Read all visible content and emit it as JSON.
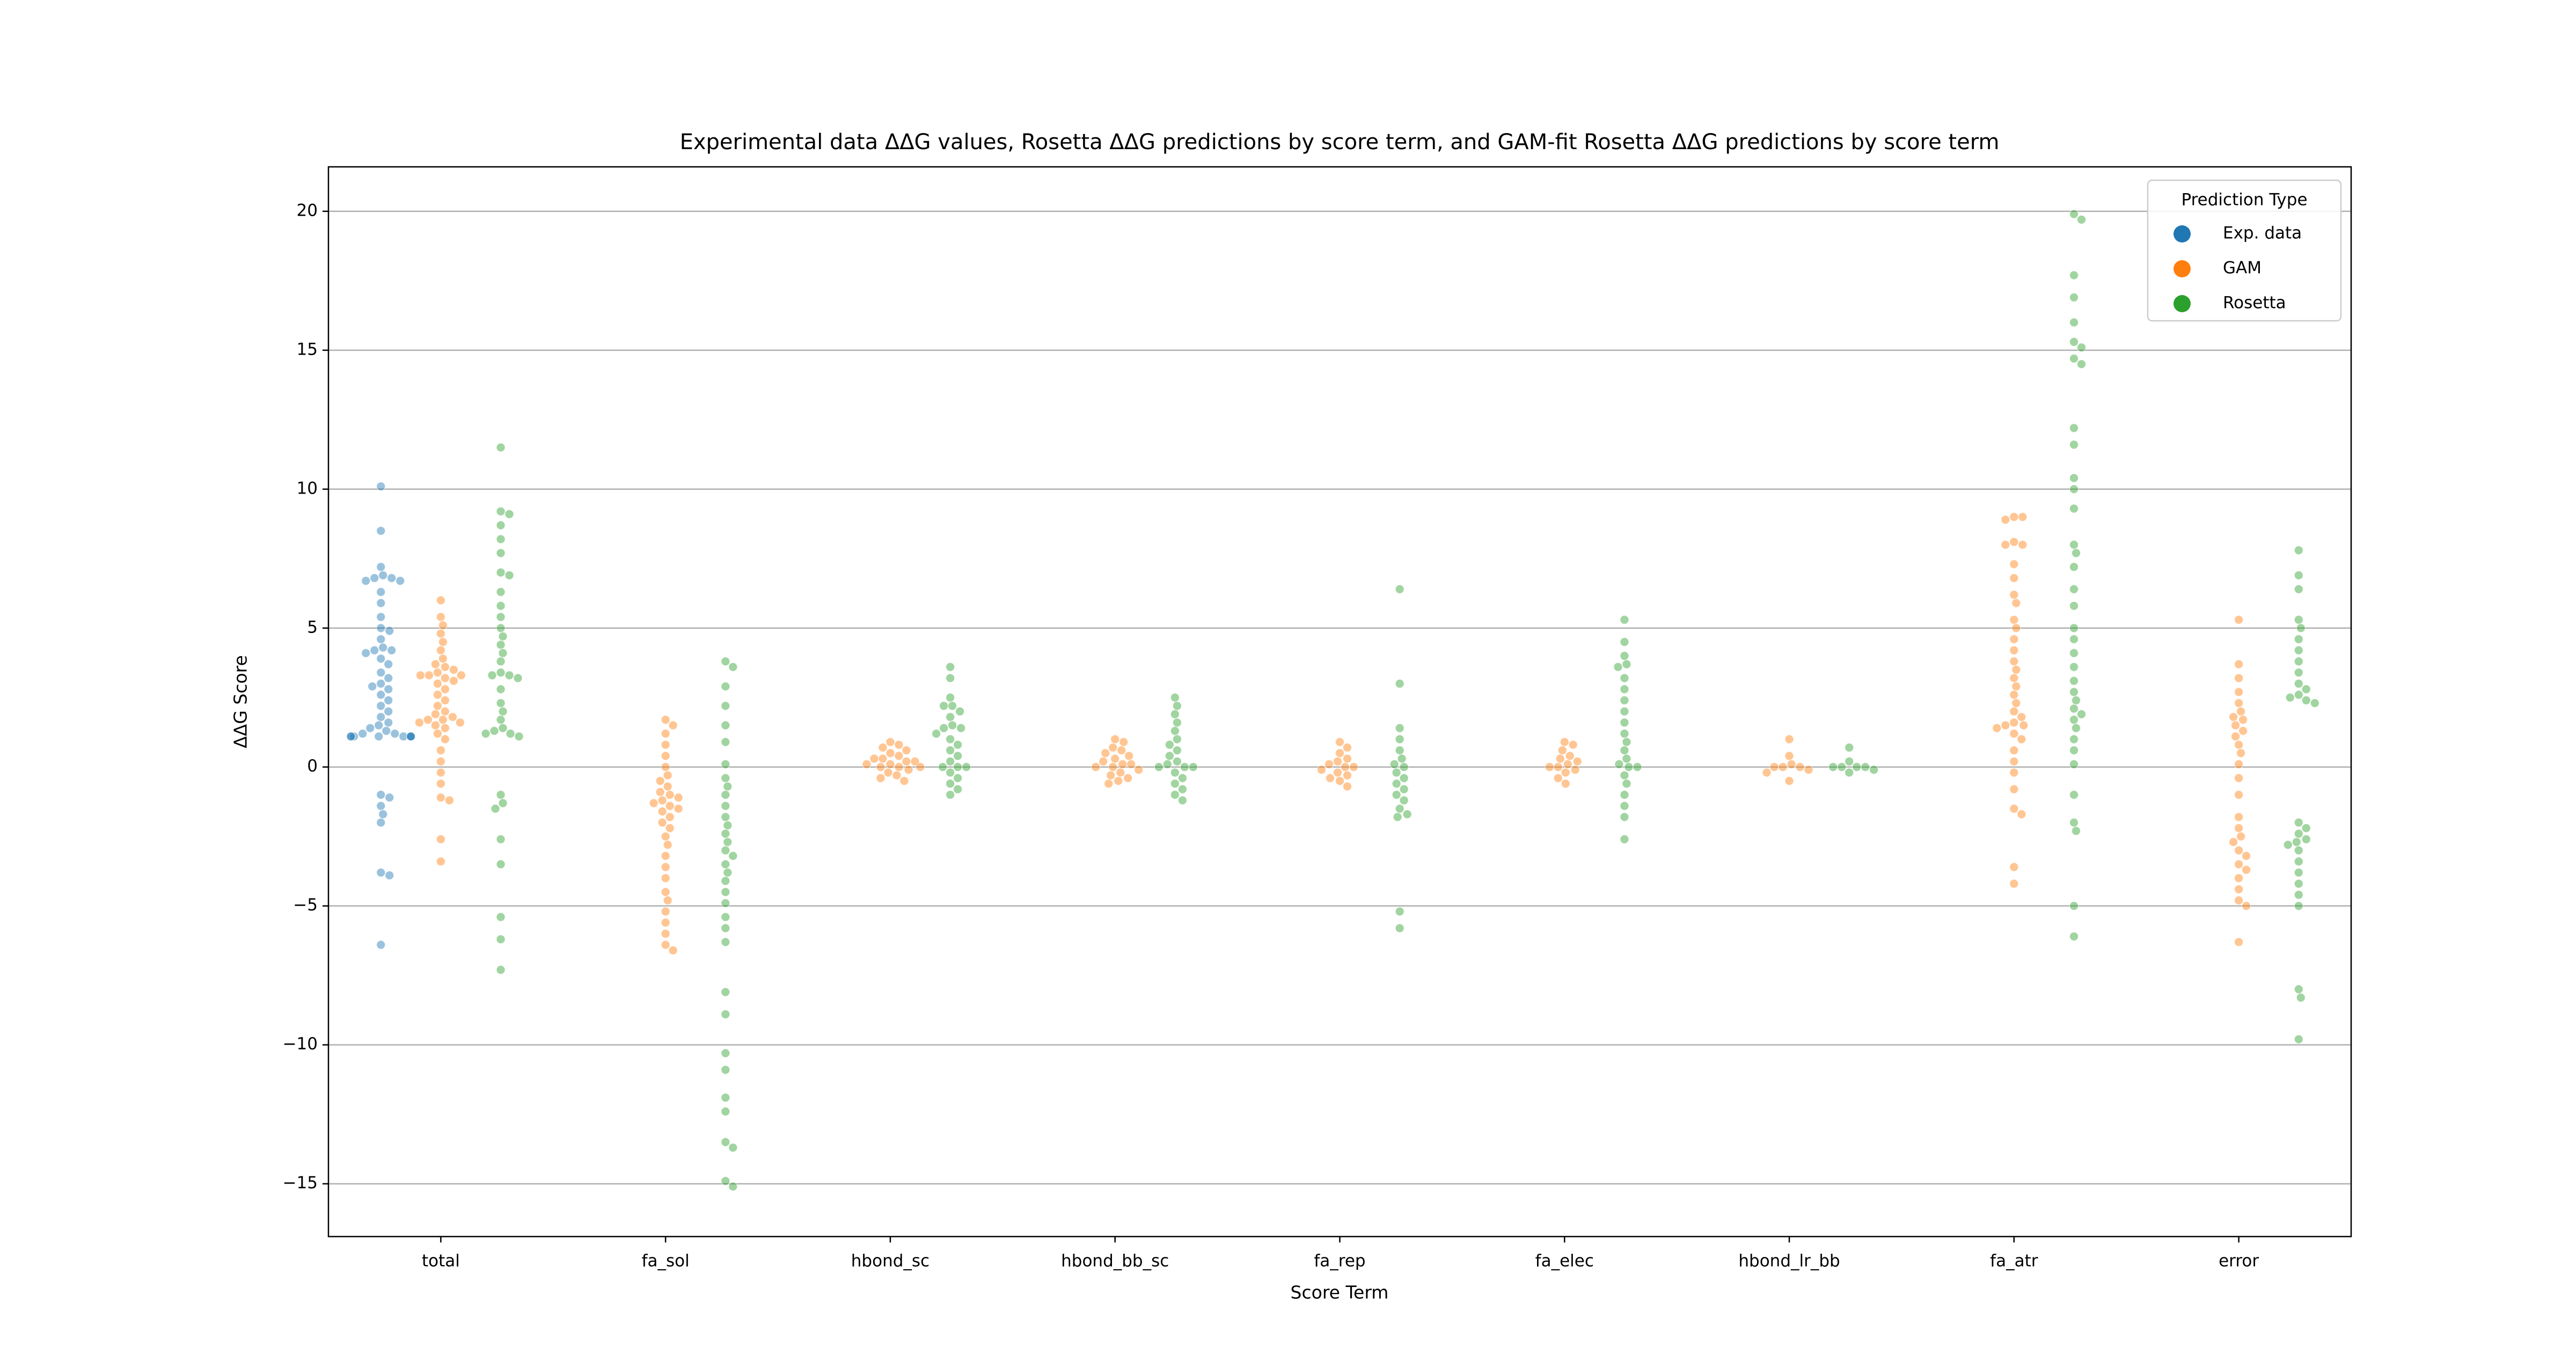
{
  "chart_data": {
    "type": "swarm",
    "title": "Experimental data ΔΔG values, Rosetta ΔΔG predictions by score term, and GAM-fit Rosetta ΔΔG predictions by score term",
    "xlabel": "Score Term",
    "ylabel": "ΔΔG Score",
    "legend_title": "Prediction Type",
    "legend": "upper right",
    "grid": true,
    "categories": [
      "total",
      "fa_sol",
      "hbond_sc",
      "hbond_bb_sc",
      "fa_rep",
      "fa_elec",
      "hbond_lr_bb",
      "fa_atr",
      "error"
    ],
    "ylim": [
      -16.9,
      21.6
    ],
    "yticks": [
      {
        "value": -15,
        "label": "−15"
      },
      {
        "value": -10,
        "label": "−10"
      },
      {
        "value": -5,
        "label": "−5"
      },
      0,
      5,
      10,
      15,
      20
    ],
    "series": [
      {
        "name": "Exp. data",
        "color": "#1f77b4",
        "values": [
          [
            10.1,
            8.5,
            7.2,
            6.9,
            6.8,
            6.8,
            6.7,
            6.7,
            6.3,
            5.9,
            5.4,
            5.0,
            4.9,
            4.6,
            4.3,
            4.2,
            4.2,
            4.1,
            3.9,
            3.7,
            3.4,
            3.2,
            3.0,
            2.9,
            2.8,
            2.6,
            2.4,
            2.2,
            2.0,
            1.8,
            1.6,
            1.5,
            1.4,
            1.3,
            1.2,
            1.2,
            1.1,
            1.1,
            1.1,
            1.1,
            1.1,
            1.1,
            1.1,
            1.1,
            -1.0,
            -1.1,
            -1.4,
            -1.7,
            -2.0,
            -3.8,
            -3.9,
            -6.4
          ],
          null,
          null,
          null,
          null,
          null,
          null,
          null,
          null
        ]
      },
      {
        "name": "GAM",
        "color": "#ff7f0e",
        "values": [
          [
            6.0,
            5.4,
            5.1,
            4.8,
            4.5,
            4.2,
            3.9,
            3.7,
            3.6,
            3.5,
            3.4,
            3.3,
            3.3,
            3.3,
            3.2,
            3.1,
            3.0,
            2.8,
            2.6,
            2.4,
            2.2,
            2.0,
            1.9,
            1.8,
            1.7,
            1.7,
            1.6,
            1.6,
            1.5,
            1.4,
            1.2,
            1.0,
            0.6,
            0.2,
            -0.2,
            -0.6,
            -1.1,
            -1.2,
            -2.6,
            -3.4
          ],
          [
            1.7,
            1.5,
            1.2,
            0.8,
            0.4,
            0.0,
            -0.3,
            -0.5,
            -0.7,
            -0.9,
            -1.0,
            -1.1,
            -1.2,
            -1.3,
            -1.4,
            -1.5,
            -1.6,
            -1.8,
            -2.0,
            -2.2,
            -2.5,
            -2.8,
            -3.2,
            -3.6,
            -4.0,
            -4.5,
            -4.8,
            -5.2,
            -5.6,
            -6.0,
            -6.4,
            -6.6
          ],
          [
            0.9,
            0.8,
            0.7,
            0.6,
            0.5,
            0.4,
            0.3,
            0.3,
            0.2,
            0.2,
            0.1,
            0.1,
            0.0,
            0.0,
            0.0,
            -0.1,
            -0.2,
            -0.3,
            -0.4,
            -0.5
          ],
          [
            1.0,
            0.9,
            0.7,
            0.6,
            0.5,
            0.4,
            0.3,
            0.2,
            0.1,
            0.1,
            0.0,
            0.0,
            -0.1,
            -0.2,
            -0.3,
            -0.4,
            -0.5,
            -0.6
          ],
          [
            0.9,
            0.7,
            0.5,
            0.3,
            0.2,
            0.1,
            0.0,
            0.0,
            -0.1,
            -0.2,
            -0.3,
            -0.4,
            -0.5,
            -0.7
          ],
          [
            0.9,
            0.8,
            0.6,
            0.4,
            0.3,
            0.2,
            0.1,
            0.0,
            0.0,
            -0.1,
            -0.2,
            -0.4,
            -0.6
          ],
          [
            1.0,
            0.4,
            0.1,
            0.0,
            0.0,
            0.0,
            -0.1,
            -0.2,
            -0.5
          ],
          [
            9.0,
            9.0,
            8.9,
            8.1,
            8.0,
            8.0,
            7.3,
            6.8,
            6.2,
            5.9,
            5.3,
            5.0,
            4.6,
            4.2,
            3.8,
            3.5,
            3.2,
            2.9,
            2.6,
            2.3,
            2.0,
            1.8,
            1.6,
            1.5,
            1.5,
            1.4,
            1.2,
            1.0,
            0.6,
            0.2,
            -0.2,
            -0.8,
            -1.5,
            -1.7,
            -3.6,
            -4.2
          ],
          [
            5.3,
            3.7,
            3.2,
            2.7,
            2.3,
            2.0,
            1.8,
            1.7,
            1.5,
            1.3,
            1.1,
            0.8,
            0.5,
            0.1,
            -0.4,
            -1.0,
            -1.8,
            -2.2,
            -2.5,
            -2.7,
            -3.0,
            -3.2,
            -3.5,
            -3.7,
            -4.0,
            -4.4,
            -4.8,
            -5.0,
            -6.3
          ]
        ]
      },
      {
        "name": "Rosetta",
        "color": "#2ca02c",
        "values": [
          [
            11.5,
            9.2,
            9.1,
            8.7,
            8.2,
            7.7,
            7.0,
            6.9,
            6.3,
            5.8,
            5.4,
            5.0,
            4.7,
            4.4,
            4.1,
            3.8,
            3.4,
            3.3,
            3.3,
            3.2,
            2.8,
            2.3,
            2.0,
            1.7,
            1.4,
            1.3,
            1.2,
            1.2,
            1.1,
            -1.0,
            -1.3,
            -1.5,
            -2.6,
            -3.5,
            -5.4,
            -6.2,
            -7.3
          ],
          [
            3.8,
            3.6,
            2.9,
            2.2,
            1.5,
            0.9,
            0.1,
            -0.4,
            -0.7,
            -1.0,
            -1.4,
            -1.8,
            -2.1,
            -2.4,
            -2.7,
            -3.0,
            -3.2,
            -3.5,
            -3.8,
            -4.1,
            -4.5,
            -4.9,
            -5.4,
            -5.8,
            -6.3,
            -8.1,
            -8.9,
            -10.3,
            -10.9,
            -11.9,
            -12.4,
            -13.5,
            -13.7,
            -14.9,
            -15.1
          ],
          [
            3.6,
            3.2,
            2.5,
            2.2,
            2.2,
            2.0,
            1.8,
            1.5,
            1.4,
            1.4,
            1.2,
            1.0,
            0.8,
            0.6,
            0.4,
            0.2,
            0.0,
            0.0,
            0.0,
            -0.2,
            -0.4,
            -0.6,
            -0.8,
            -1.0
          ],
          [
            2.5,
            2.2,
            1.9,
            1.6,
            1.3,
            1.0,
            0.8,
            0.6,
            0.4,
            0.2,
            0.1,
            0.0,
            0.0,
            0.0,
            -0.2,
            -0.4,
            -0.6,
            -0.8,
            -1.0,
            -1.2
          ],
          [
            6.4,
            3.0,
            1.4,
            1.0,
            0.6,
            0.3,
            0.1,
            0.0,
            -0.2,
            -0.4,
            -0.6,
            -0.8,
            -1.0,
            -1.2,
            -1.5,
            -1.7,
            -1.8,
            -5.2,
            -5.8
          ],
          [
            5.3,
            4.5,
            4.0,
            3.7,
            3.6,
            3.2,
            2.8,
            2.4,
            2.0,
            1.6,
            1.2,
            0.9,
            0.6,
            0.3,
            0.1,
            0.0,
            0.0,
            -0.3,
            -0.6,
            -1.0,
            -1.4,
            -1.8,
            -2.6
          ],
          [
            0.7,
            0.2,
            0.0,
            0.0,
            0.0,
            0.0,
            -0.1,
            -0.2
          ],
          [
            19.9,
            19.7,
            17.7,
            16.9,
            16.0,
            15.3,
            15.1,
            14.7,
            14.5,
            12.2,
            11.6,
            10.4,
            10.0,
            9.3,
            8.0,
            7.7,
            7.2,
            6.4,
            5.8,
            5.0,
            4.6,
            4.1,
            3.6,
            3.1,
            2.7,
            2.4,
            2.1,
            1.9,
            1.7,
            1.4,
            1.0,
            0.6,
            0.1,
            -1.0,
            -2.0,
            -2.3,
            -5.0,
            -6.1
          ],
          [
            7.8,
            6.9,
            6.4,
            5.3,
            5.0,
            4.6,
            4.2,
            3.8,
            3.4,
            3.0,
            2.8,
            2.6,
            2.5,
            2.4,
            2.3,
            -2.0,
            -2.2,
            -2.4,
            -2.6,
            -2.7,
            -2.8,
            -3.0,
            -3.4,
            -3.8,
            -4.2,
            -4.6,
            -5.0,
            -8.0,
            -8.3,
            -9.8
          ]
        ]
      }
    ]
  }
}
